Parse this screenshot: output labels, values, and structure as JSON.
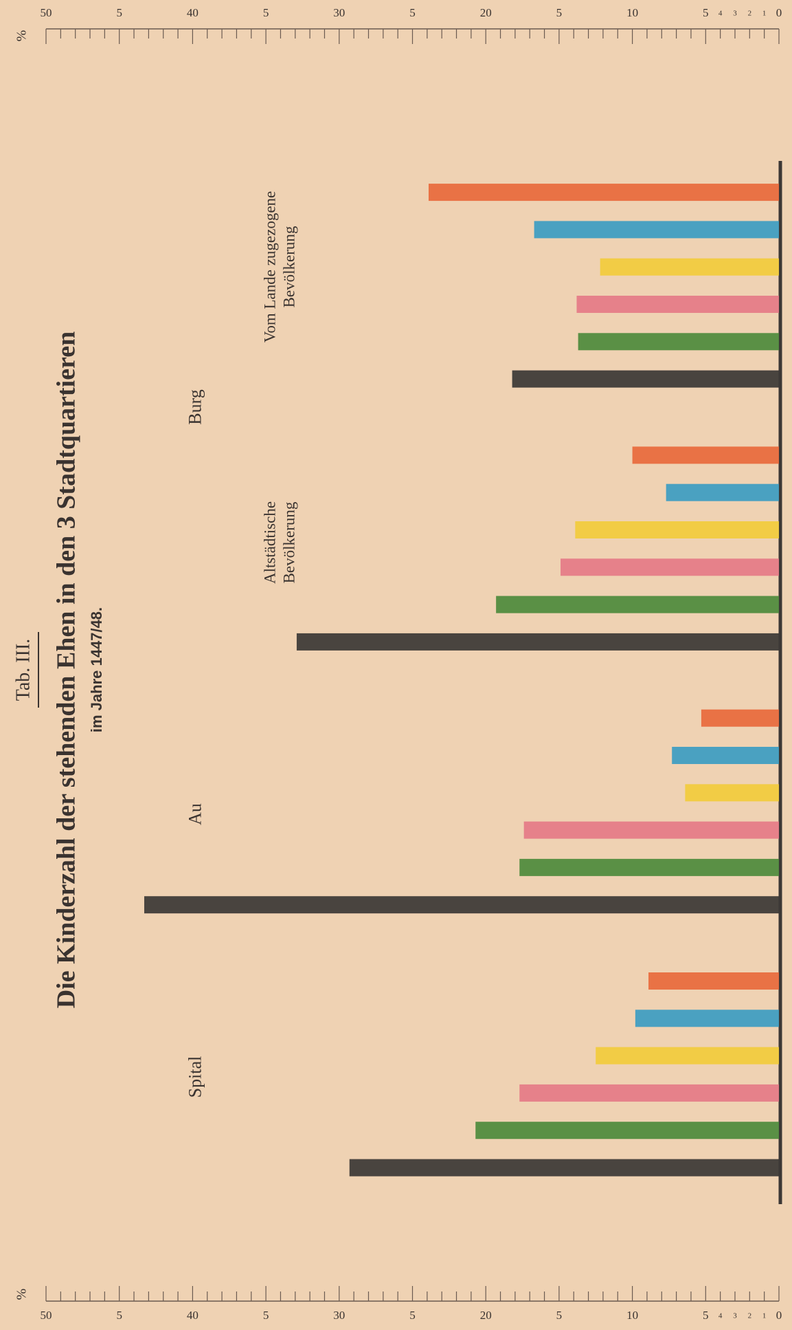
{
  "header": "Tab. III.",
  "chart_data": {
    "type": "bar",
    "title": "Die Kinderzahl der stehenden Ehen in den 3 Stadtquartieren",
    "subtitle": "im Jahre 1447/48.",
    "y_label": "%",
    "categories": [
      "Spital",
      "Au",
      "Altstädtische\nBevölkerung",
      "Vom Lande zugezogene\nBevölkerung"
    ],
    "annotations": [
      "Burg"
    ],
    "series": [
      {
        "color": "#3b3735",
        "values": [
          29.3,
          43.3,
          32.9,
          18.2
        ]
      },
      {
        "color": "#4d8a3c",
        "values": [
          20.7,
          17.7,
          19.3,
          13.7
        ]
      },
      {
        "color": "#e57a87",
        "values": [
          17.7,
          17.4,
          14.9,
          13.8
        ]
      },
      {
        "color": "#f2cb3c",
        "values": [
          12.5,
          6.4,
          13.9,
          12.2
        ]
      },
      {
        "color": "#3c9cc2",
        "values": [
          9.8,
          7.3,
          7.7,
          16.7
        ]
      },
      {
        "color": "#e8693c",
        "values": [
          8.9,
          5.3,
          10.0,
          23.9
        ]
      }
    ],
    "ylim": [
      0,
      50
    ],
    "yticks": [
      0,
      1,
      2,
      3,
      4,
      5,
      10,
      {
        "value": 15,
        "label": "5"
      },
      20,
      {
        "value": 25,
        "label": "5"
      },
      30,
      {
        "value": 35,
        "label": "5"
      },
      40,
      {
        "value": 45,
        "label": "5"
      },
      50
    ],
    "minor_yticks": [
      6,
      7,
      8,
      9,
      11,
      12,
      13,
      14,
      16,
      17,
      18,
      19,
      21,
      22,
      23,
      24,
      26,
      27,
      28,
      29,
      31,
      32,
      33,
      34,
      36,
      37,
      38,
      39,
      41,
      42,
      43,
      44,
      46,
      47,
      48,
      49
    ]
  }
}
